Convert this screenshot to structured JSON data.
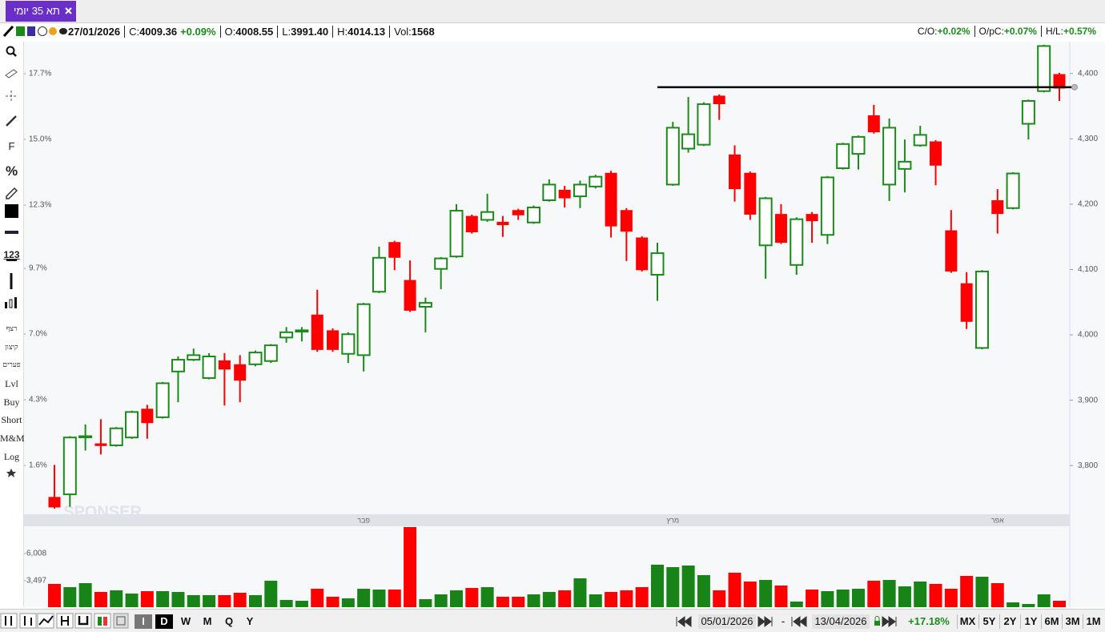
{
  "tab": {
    "title": "תא 35 יומי"
  },
  "header": {
    "date": "27/01/2026",
    "fields": [
      {
        "label": "C:",
        "value": "4009.36",
        "change": "+0.09%"
      },
      {
        "label": "O:",
        "value": "4008.55"
      },
      {
        "label": "L:",
        "value": "3991.40"
      },
      {
        "label": "H:",
        "value": "4014.13"
      },
      {
        "label": "Vol:",
        "value": "1568"
      }
    ],
    "ratios": [
      {
        "label": "C/O:",
        "value": "+0.02%"
      },
      {
        "label": "O/pC:",
        "value": "+0.07%"
      },
      {
        "label": "H/L:",
        "value": "+0.57%"
      }
    ]
  },
  "tools": [
    "F",
    "%",
    "123",
    "רצף",
    "קיצון",
    "פערים",
    "Lvl",
    "Buy",
    "Short",
    "M&M",
    "Log"
  ],
  "watermark": "SPONSER",
  "footer": {
    "periods": [
      "I",
      "D",
      "W",
      "M",
      "Q",
      "Y"
    ],
    "from": "05/01/2026",
    "separator": "-",
    "to": "13/04/2026",
    "change": "+17.18%",
    "spans": [
      "MX",
      "5Y",
      "2Y",
      "1Y",
      "6M",
      "3M",
      "1M"
    ]
  },
  "chart_data": [
    {
      "type": "candlestick",
      "up_color": "#1a8a1a",
      "down_color": "#ff0000",
      "grid": false,
      "categories": [
        null,
        null,
        null,
        null,
        null,
        null,
        null,
        null,
        null,
        null,
        null,
        null,
        null,
        null,
        null,
        null,
        null,
        null,
        null,
        null,
        "פבר",
        null,
        null,
        null,
        null,
        null,
        null,
        null,
        null,
        null,
        null,
        null,
        null,
        null,
        null,
        null,
        null,
        null,
        null,
        null,
        "מרץ",
        null,
        null,
        null,
        null,
        null,
        null,
        null,
        null,
        null,
        null,
        null,
        null,
        null,
        null,
        null,
        null,
        null,
        null,
        null,
        null,
        "אפר",
        null,
        null,
        null,
        null
      ],
      "open": [
        3752,
        3756,
        3844,
        3834,
        3831,
        3843,
        3887,
        3874,
        3944,
        3962,
        3934,
        3961,
        3955,
        3955,
        3960,
        3996,
        4005,
        4031,
        4007,
        3971,
        3969,
        4066,
        4142,
        4084,
        4043,
        4101,
        4120,
        4182,
        4176,
        4173,
        4191,
        4172,
        4206,
        4222,
        4212,
        4227,
        4248,
        4191,
        4149,
        4092,
        4230,
        4285,
        4291,
        4366,
        4276,
        4248,
        4137,
        4185,
        4107,
        4185,
        4153,
        4255,
        4277,
        4336,
        4230,
        4254,
        4290,
        4296,
        4160,
        4079,
        3980,
        4206,
        4194,
        4323,
        4373,
        4399
      ],
      "high": [
        3801,
        3845,
        3863,
        3871,
        3859,
        3884,
        3893,
        3928,
        3967,
        3979,
        3972,
        3972,
        3969,
        3976,
        3986,
        4012,
        4012,
        4069,
        4010,
        4004,
        4049,
        4135,
        4144,
        4114,
        4057,
        4119,
        4200,
        4184,
        4216,
        4182,
        4193,
        4198,
        4238,
        4228,
        4236,
        4245,
        4251,
        4194,
        4151,
        4141,
        4326,
        4364,
        4356,
        4368,
        4290,
        4250,
        4211,
        4200,
        4180,
        4188,
        4243,
        4294,
        4305,
        4352,
        4331,
        4299,
        4320,
        4298,
        4191,
        4096,
        4099,
        4223,
        4249,
        4360,
        4444,
        4401
      ],
      "low": [
        3734,
        3737,
        3823,
        3817,
        3829,
        3841,
        3841,
        3872,
        3897,
        3960,
        3932,
        3892,
        3897,
        3952,
        3957,
        3988,
        3990,
        3974,
        3974,
        3957,
        3944,
        4064,
        4099,
        4035,
        4004,
        4070,
        4118,
        4155,
        4173,
        4150,
        4176,
        4170,
        4204,
        4195,
        4194,
        4224,
        4149,
        4113,
        4097,
        4052,
        4228,
        4279,
        4289,
        4329,
        4204,
        4176,
        4086,
        4139,
        4092,
        4141,
        4139,
        4253,
        4253,
        4308,
        4205,
        4218,
        4288,
        4229,
        4095,
        4009,
        3978,
        4155,
        4192,
        4299,
        4371,
        4358
      ],
      "close": [
        3736,
        3843,
        3845,
        3830,
        3857,
        3882,
        3865,
        3926,
        3962,
        3969,
        3967,
        3947,
        3930,
        3973,
        3984,
        4004,
        4007,
        3977,
        3977,
        4001,
        4047,
        4118,
        4118,
        4037,
        4049,
        4117,
        4190,
        4157,
        4188,
        4168,
        4183,
        4195,
        4230,
        4209,
        4230,
        4242,
        4166,
        4158,
        4099,
        4125,
        4317,
        4307,
        4353,
        4353,
        4223,
        4184,
        4209,
        4141,
        4177,
        4174,
        4241,
        4292,
        4303,
        4310,
        4317,
        4265,
        4306,
        4259,
        4097,
        4020,
        4097,
        4185,
        4247,
        4358,
        4442,
        4377
      ],
      "ylim": [
        3728,
        4445
      ],
      "yticks": [
        {
          "value": 3800,
          "label": "3,800"
        },
        {
          "value": 3900,
          "label": "3,900"
        },
        {
          "value": 4000,
          "label": "4,000"
        },
        {
          "value": 4100,
          "label": "4,100"
        },
        {
          "value": 4200,
          "label": "4,200"
        },
        {
          "value": 4300,
          "label": "4,300"
        },
        {
          "value": 4400,
          "label": "4,400"
        }
      ],
      "y2lim": [
        -0.34,
        18.92
      ],
      "y2ticks": [
        {
          "value": 1.6,
          "label": "1.6%"
        },
        {
          "value": 4.3,
          "label": "4.3%"
        },
        {
          "value": 7.0,
          "label": "7.0%"
        },
        {
          "value": 9.7,
          "label": "9.7%"
        },
        {
          "value": 12.3,
          "label": "12.3%"
        },
        {
          "value": 15.0,
          "label": "15.0%"
        },
        {
          "value": 17.7,
          "label": "17.7%"
        }
      ],
      "hlines": [
        {
          "value": 4379,
          "start": 39
        }
      ]
    },
    {
      "type": "bar",
      "values": [
        3202,
        2906,
        3275,
        2463,
        2611,
        2315,
        2537,
        2537,
        2463,
        2168,
        2168,
        2168,
        2389,
        2168,
        3497,
        1725,
        1651,
        2758,
        2020,
        1872,
        2758,
        2685,
        2685,
        8445,
        1798,
        2242,
        2611,
        2832,
        2906,
        2020,
        2020,
        2242,
        2463,
        2611,
        3719,
        2242,
        2463,
        2611,
        2906,
        4974,
        4752,
        4900,
        4014,
        2611,
        4236,
        3423,
        3571,
        3054,
        1577,
        2685,
        2537,
        2685,
        2758,
        3497,
        3571,
        2980,
        3423,
        3202,
        2758,
        3940,
        3866,
        3275,
        1503,
        1355,
        2242,
        1651
      ],
      "ylim": [
        1060,
        8445
      ],
      "yticks": [
        {
          "value": 3497,
          "label": "3,497"
        },
        {
          "value": 6008,
          "label": "6,008"
        }
      ]
    }
  ]
}
